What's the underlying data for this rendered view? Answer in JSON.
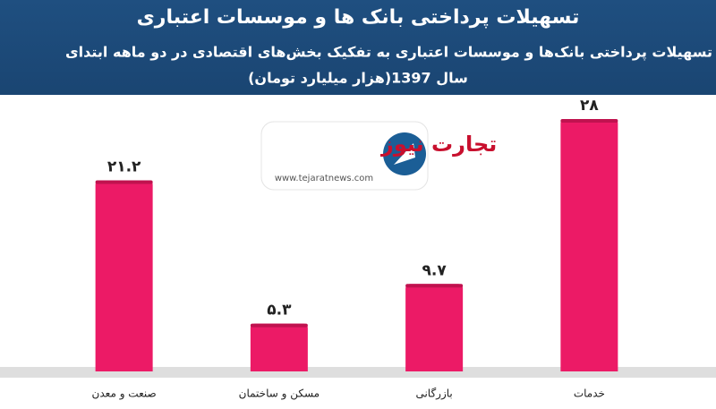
{
  "chart_data": {
    "type": "bar",
    "title": "تسهیلات پرداختی بانک ها و موسسات اعتباری",
    "subtitle": [
      "تسهیلات پرداختی بانک‌ها و موسسات اعتباری به تفکیک بخش‌های اقتصادی در دو ماهه ابتدای",
      "سال 1397(هزار میلیارد تومان)"
    ],
    "categories": [
      "صنعت و معدن",
      "مسکن و ساختمان",
      "بازرگانی",
      "خدمات"
    ],
    "values": [
      21.2,
      5.3,
      9.7,
      28
    ],
    "value_labels": [
      "۲۱.۲",
      "۵.۳",
      "۹.۷",
      "۲۸"
    ],
    "color": "#ec1a66",
    "logo": {
      "name": "تجارت نیوز",
      "url": "www.tejaratnews.com"
    }
  }
}
